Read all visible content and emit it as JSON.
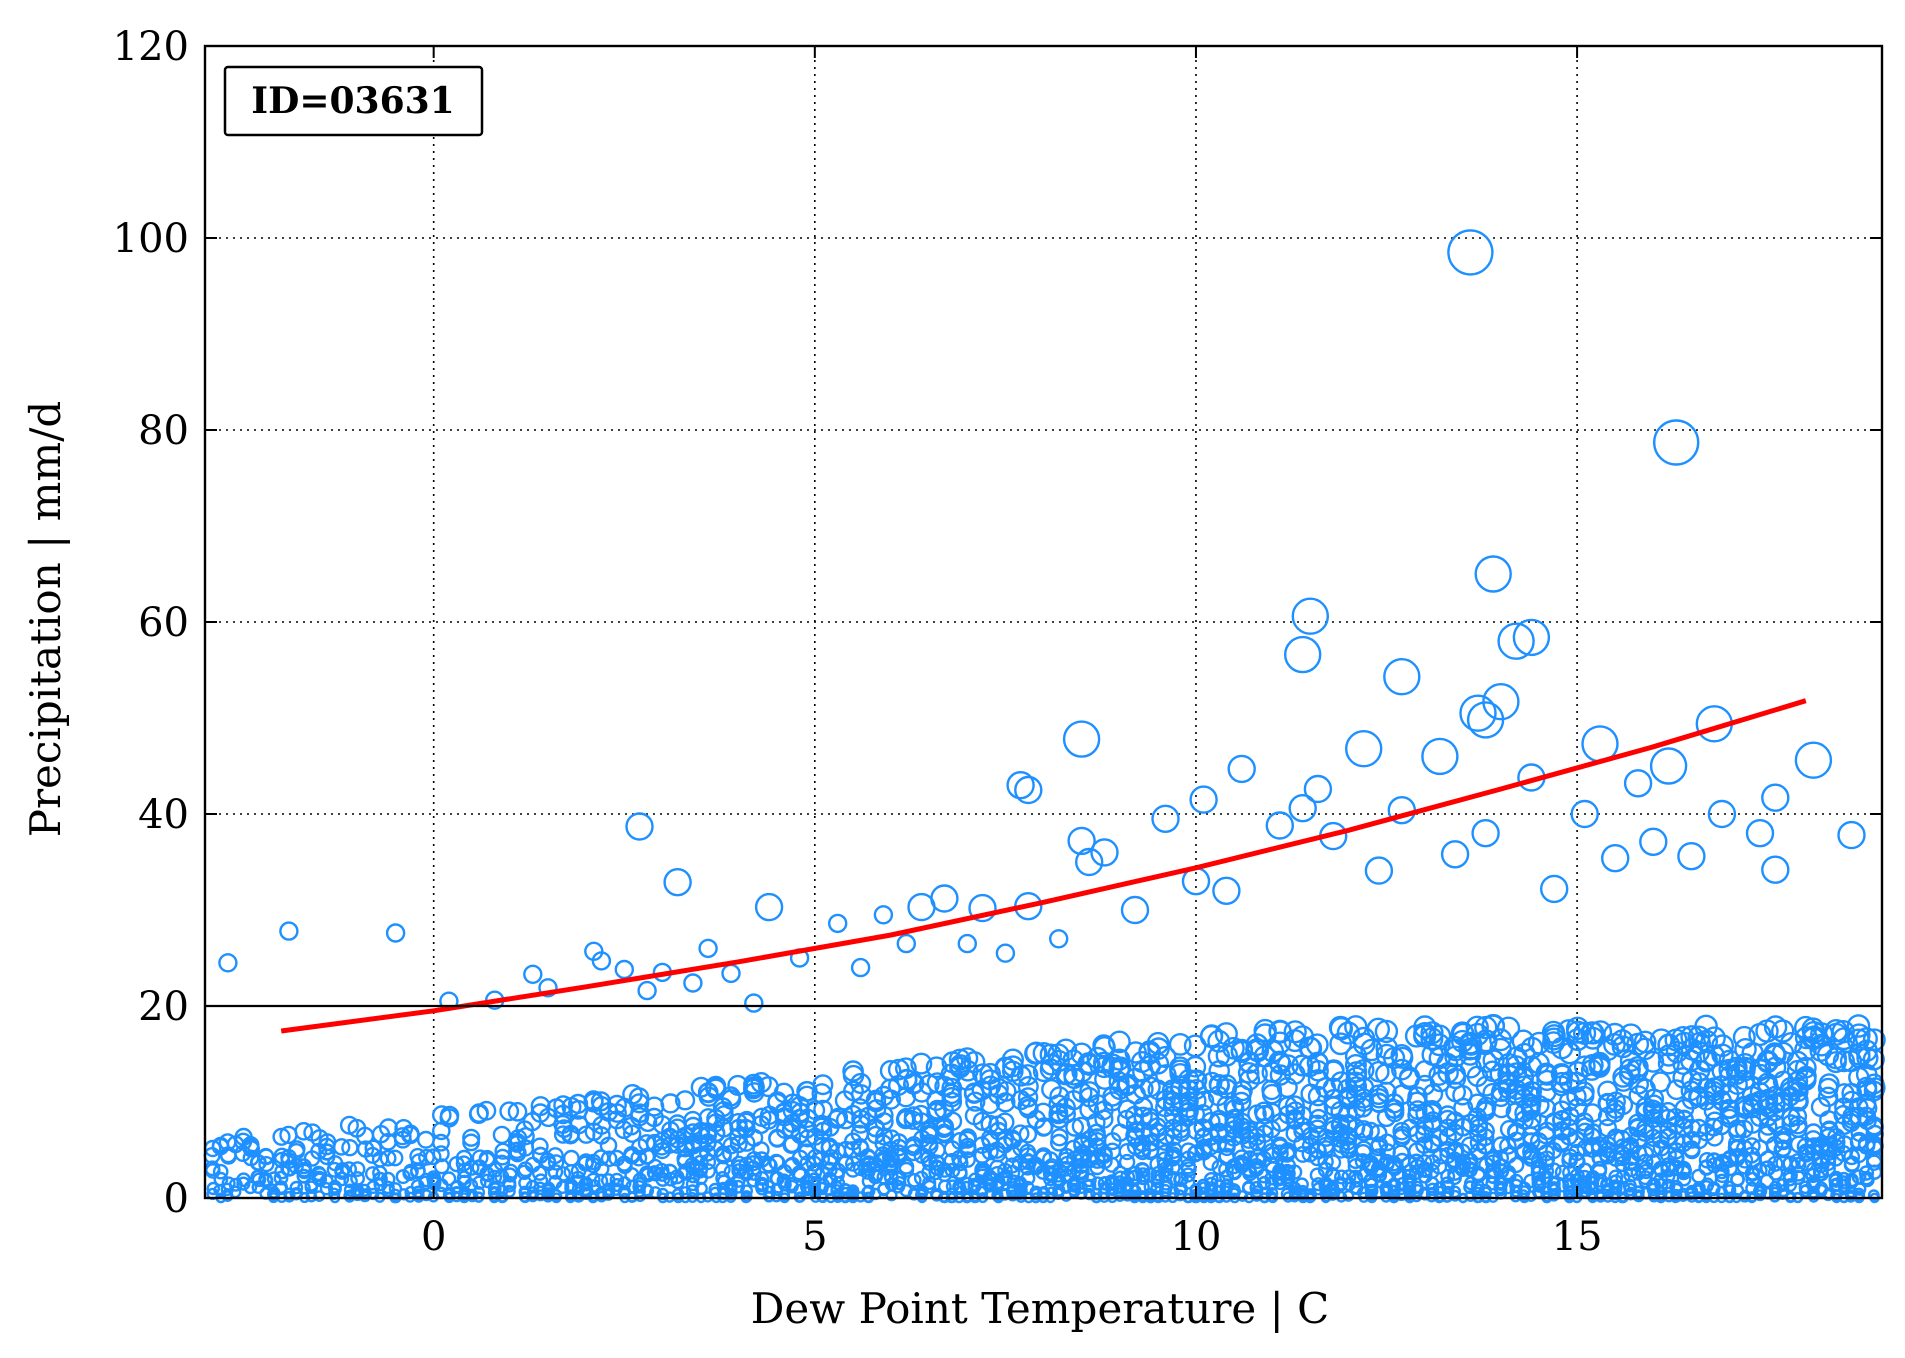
{
  "chart_data": {
    "type": "scatter",
    "title": "",
    "xlabel": "Dew Point Temperature | C",
    "ylabel": "Precipitation | mm/d",
    "xlim": [
      -3,
      19
    ],
    "ylim": [
      0,
      120
    ],
    "xticks": [
      0,
      5,
      10,
      15
    ],
    "yticks": [
      0,
      20,
      40,
      60,
      80,
      100,
      120
    ],
    "grid": true,
    "annotation": "ID=03631",
    "reference_line_y": 20,
    "colors": {
      "points": "#1e90ff",
      "fit": "#ff0000",
      "axes": "#000000"
    },
    "fit_curve": {
      "x": [
        -2,
        0,
        2,
        4,
        6,
        8,
        10,
        12,
        14,
        16,
        18
      ],
      "y": [
        17.4,
        19.5,
        22.0,
        24.6,
        27.4,
        30.8,
        34.4,
        38.3,
        42.6,
        47.0,
        51.8
      ]
    },
    "series": [
      {
        "x": [
          -2.7,
          -1.9,
          -0.5,
          0.2,
          0.8,
          1.3,
          1.5,
          2.1,
          2.2,
          2.5,
          2.7,
          2.8,
          3.0,
          3.2,
          3.4,
          3.6,
          3.9,
          4.2,
          4.4,
          4.8,
          5.3,
          5.6,
          5.9,
          6.2,
          6.4,
          6.7,
          7.0,
          7.2,
          7.5,
          7.7,
          7.8,
          7.8,
          8.2,
          8.5,
          8.5,
          8.6,
          8.8,
          9.2,
          9.6,
          10.0,
          10.1,
          10.4,
          10.6,
          11.1,
          11.4,
          11.4,
          11.5,
          11.6,
          11.8,
          12.2,
          12.4,
          12.7,
          12.7,
          13.2,
          13.4,
          13.6,
          13.7,
          13.8,
          13.8,
          13.9,
          14.0,
          14.2,
          14.4,
          14.4,
          14.7,
          15.1,
          15.3,
          15.5,
          15.8,
          16.0,
          16.2,
          16.3,
          16.5,
          16.8,
          16.9,
          17.4,
          17.6,
          17.6,
          18.1,
          18.6
        ],
        "y": [
          24.5,
          27.8,
          27.6,
          20.5,
          20.6,
          23.3,
          21.9,
          25.7,
          24.7,
          23.8,
          38.7,
          21.6,
          23.5,
          32.9,
          22.4,
          26.0,
          23.4,
          20.3,
          30.3,
          25.0,
          28.6,
          24.0,
          29.5,
          26.5,
          30.3,
          31.2,
          26.5,
          30.2,
          25.5,
          43.0,
          42.5,
          30.4,
          27.0,
          47.8,
          37.2,
          35.0,
          36.0,
          30.0,
          39.5,
          33.0,
          41.5,
          32.0,
          44.7,
          38.8,
          56.6,
          40.6,
          60.6,
          42.6,
          37.7,
          46.8,
          34.1,
          54.3,
          40.4,
          46.0,
          35.8,
          98.5,
          50.5,
          49.8,
          38.0,
          65.0,
          51.7,
          58.0,
          58.4,
          43.8,
          32.2,
          40.0,
          47.3,
          35.4,
          43.2,
          37.1,
          45.0,
          78.7,
          35.6,
          49.4,
          40.0,
          38.0,
          41.7,
          34.2,
          45.6,
          37.8
        ],
        "sizes": [
          1,
          1,
          1,
          1,
          1,
          1,
          1,
          1,
          1,
          1,
          2,
          1,
          1,
          2,
          1,
          1,
          1,
          1,
          2,
          1,
          1,
          1,
          1,
          1,
          2,
          2,
          1,
          2,
          1,
          2,
          2,
          2,
          1,
          3,
          2,
          2,
          2,
          2,
          2,
          2,
          2,
          2,
          2,
          2,
          3,
          2,
          3,
          2,
          2,
          3,
          2,
          3,
          2,
          3,
          2,
          4,
          3,
          3,
          2,
          3,
          3,
          3,
          3,
          2,
          2,
          2,
          3,
          2,
          2,
          2,
          3,
          4,
          2,
          3,
          2,
          2,
          2,
          2,
          3,
          2
        ]
      }
    ]
  }
}
